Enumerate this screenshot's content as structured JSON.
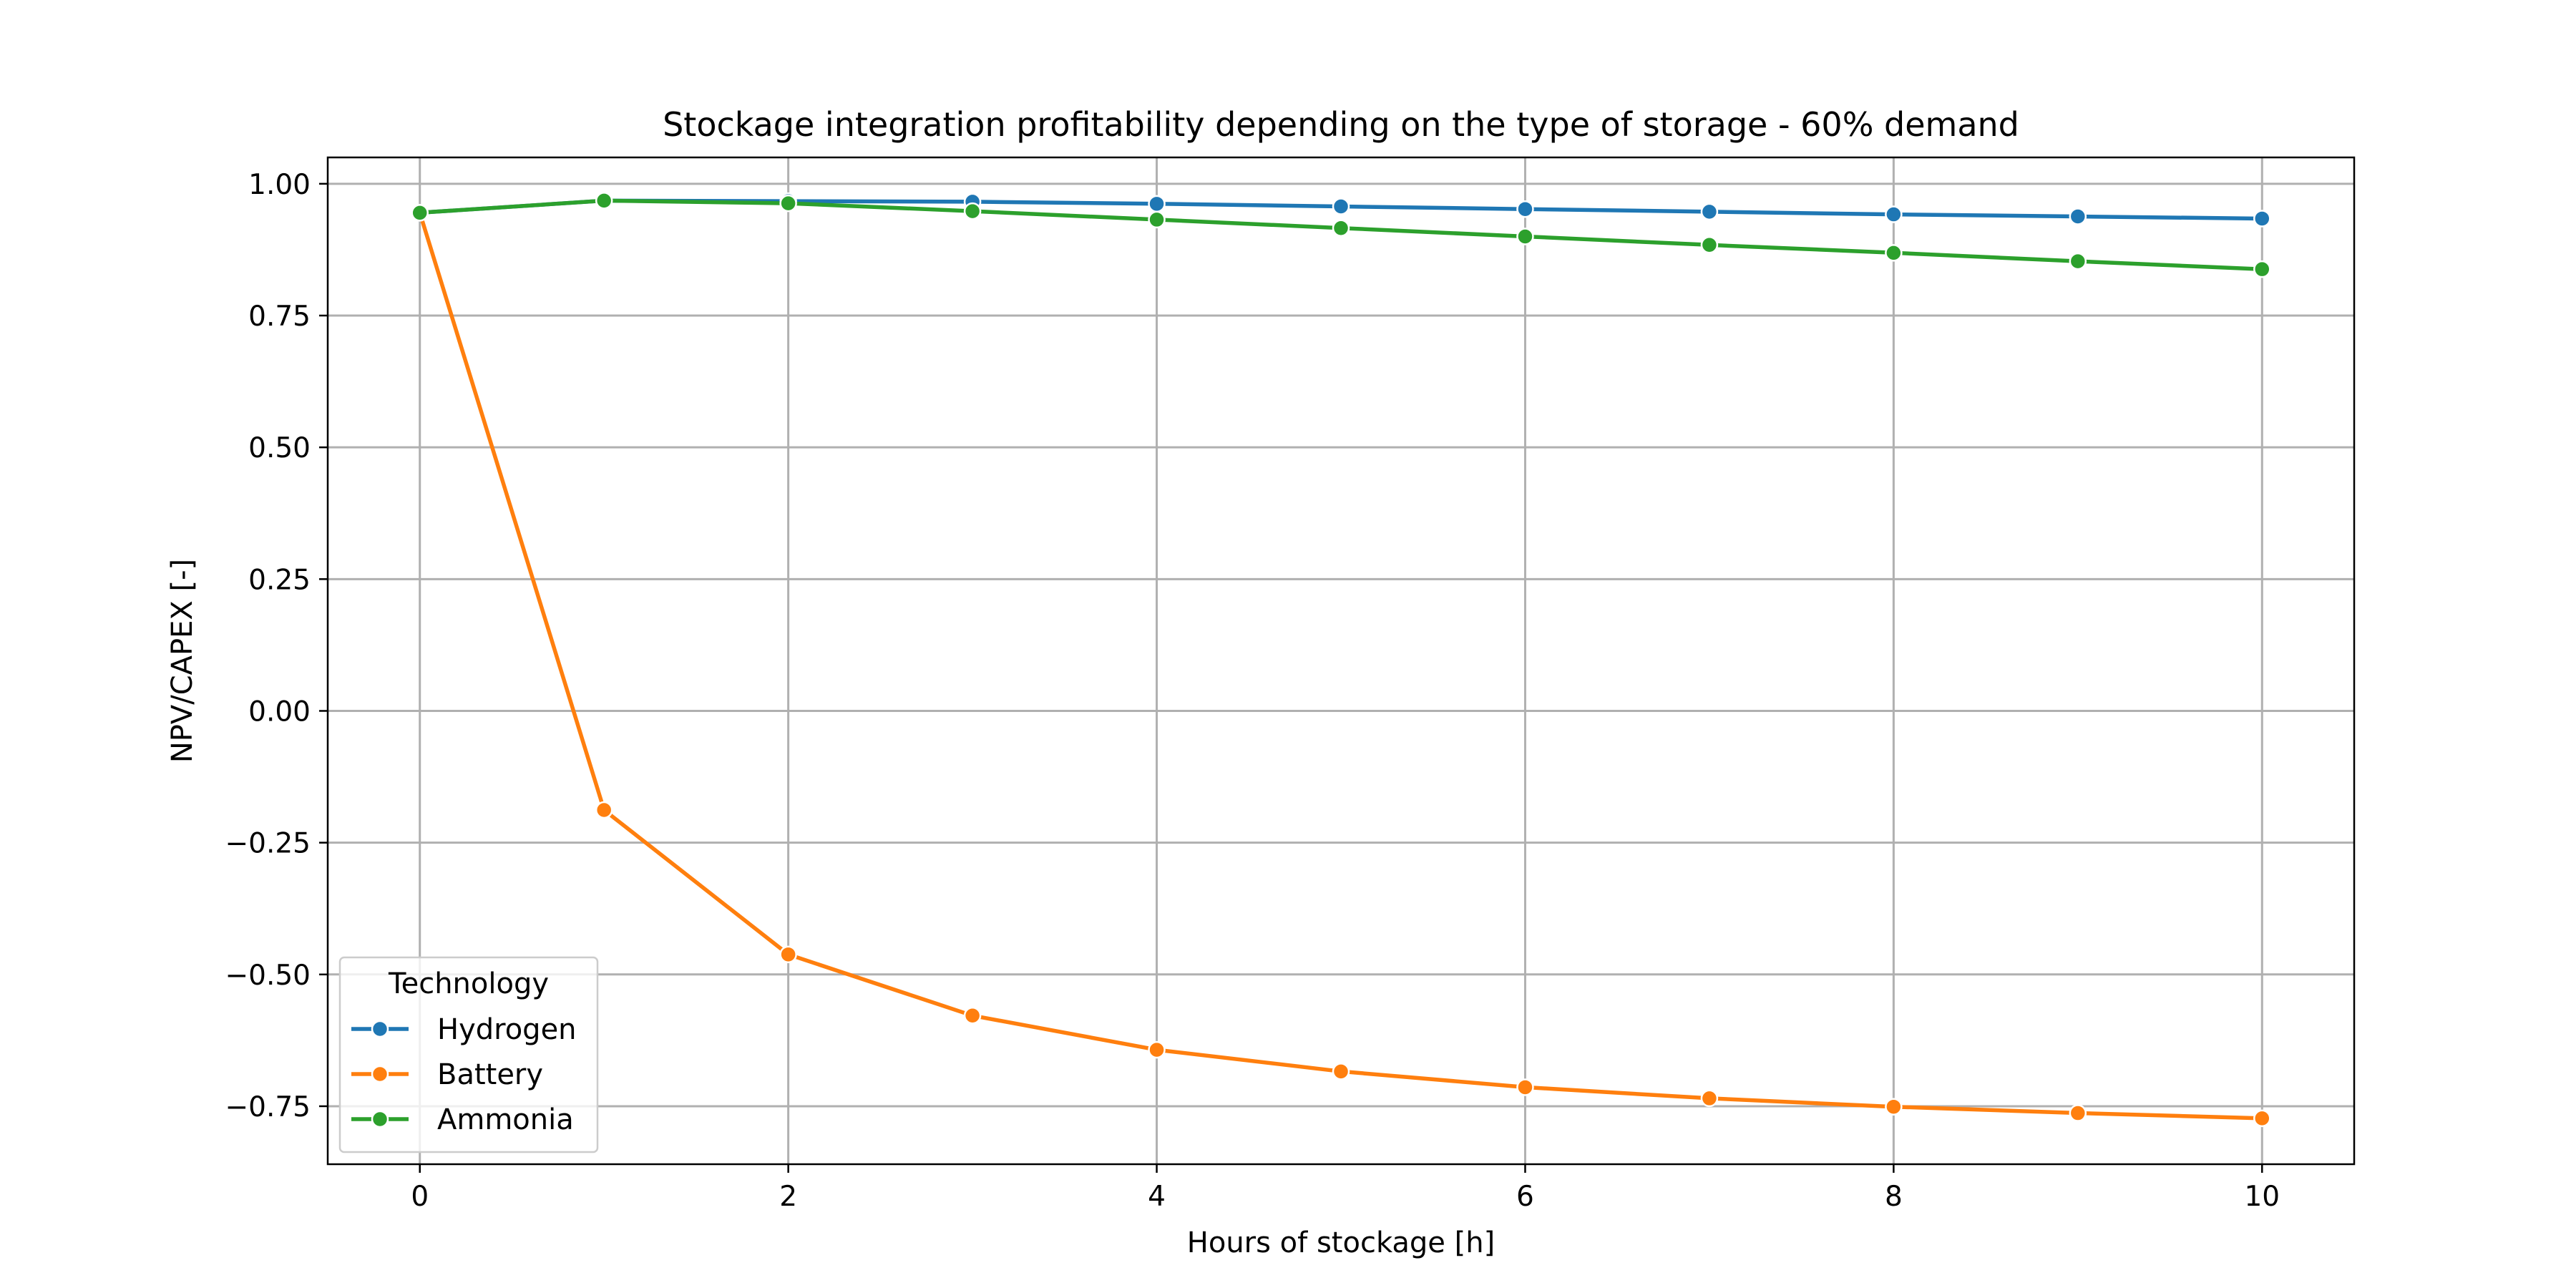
{
  "chart_data": {
    "type": "line",
    "title": "Stockage integration profitability depending on the type of storage - 60% demand",
    "xlabel": "Hours of stockage [h]",
    "ylabel": "NPV/CAPEX [-]",
    "x": [
      0,
      1,
      2,
      3,
      4,
      5,
      6,
      7,
      8,
      9,
      10
    ],
    "xlim": [
      -0.5,
      10.5
    ],
    "ylim": [
      -0.86,
      1.05
    ],
    "x_ticks": [
      0,
      2,
      4,
      6,
      8,
      10
    ],
    "x_tick_labels": [
      "0",
      "2",
      "4",
      "6",
      "8",
      "10"
    ],
    "y_ticks": [
      1.0,
      0.75,
      0.5,
      0.25,
      0.0,
      -0.25,
      -0.5,
      -0.75
    ],
    "y_tick_labels": [
      "1.00",
      "0.75",
      "0.50",
      "0.25",
      "0.00",
      "−0.25",
      "−0.50",
      "−0.75"
    ],
    "grid": true,
    "legend_title": "Technology",
    "legend_position": "bottom-left",
    "series": [
      {
        "name": "Hydrogen",
        "color": "#1f77b4",
        "values": [
          0.945,
          0.968,
          0.967,
          0.966,
          0.962,
          0.957,
          0.952,
          0.947,
          0.942,
          0.938,
          0.934
        ]
      },
      {
        "name": "Battery",
        "color": "#ff7f0e",
        "values": [
          0.945,
          -0.188,
          -0.462,
          -0.578,
          -0.643,
          -0.684,
          -0.714,
          -0.735,
          -0.751,
          -0.763,
          -0.773
        ]
      },
      {
        "name": "Ammonia",
        "color": "#2ca02c",
        "values": [
          0.945,
          0.968,
          0.963,
          0.948,
          0.932,
          0.916,
          0.9,
          0.884,
          0.869,
          0.853,
          0.838
        ]
      }
    ]
  }
}
